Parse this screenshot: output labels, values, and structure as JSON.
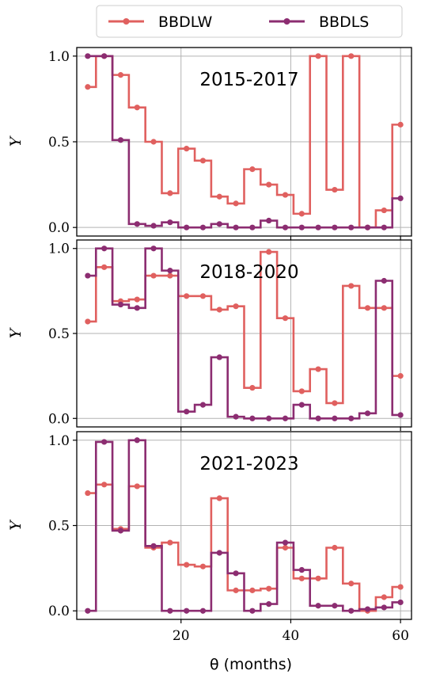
{
  "colors": {
    "BBDLW": "#e0605f",
    "BBDLS": "#8c2d71",
    "grid": "#b3b3b3",
    "axis": "#000000"
  },
  "chart_data": {
    "type": "line",
    "drawstyle": "steps-mid",
    "xlabel": "θ (months)",
    "ylabel": "Y",
    "xlim": [
      1,
      62
    ],
    "ylim": [
      -0.05,
      1.05
    ],
    "xticks": [
      20,
      40,
      60
    ],
    "yticks": [
      0.0,
      0.5,
      1.0
    ],
    "ytick_labels": [
      "0.0",
      "0.5",
      "1.0"
    ],
    "grid": true,
    "legend": {
      "placement": "top-center",
      "entries": [
        "BBDLW",
        "BBDLS"
      ]
    },
    "x": [
      3,
      6,
      9,
      12,
      15,
      18,
      21,
      24,
      27,
      30,
      33,
      36,
      39,
      42,
      45,
      48,
      51,
      54,
      57,
      60
    ],
    "panels": [
      {
        "title": "2015-2017",
        "series": [
          {
            "name": "BBDLW",
            "values": [
              0.82,
              1.0,
              0.89,
              0.7,
              0.5,
              0.2,
              0.46,
              0.39,
              0.18,
              0.14,
              0.34,
              0.25,
              0.19,
              0.08,
              1.0,
              0.22,
              1.0,
              0.0,
              0.1,
              0.6
            ]
          },
          {
            "name": "BBDLS",
            "values": [
              1.0,
              1.0,
              0.51,
              0.02,
              0.01,
              0.03,
              0.0,
              0.0,
              0.02,
              0.0,
              0.0,
              0.04,
              0.0,
              0.0,
              0.0,
              0.0,
              0.0,
              0.0,
              0.0,
              0.17
            ]
          }
        ]
      },
      {
        "title": "2018-2020",
        "series": [
          {
            "name": "BBDLW",
            "values": [
              0.57,
              0.89,
              0.69,
              0.7,
              0.84,
              0.84,
              0.72,
              0.72,
              0.64,
              0.66,
              0.18,
              0.98,
              0.59,
              0.16,
              0.29,
              0.09,
              0.78,
              0.65,
              0.65,
              0.25
            ]
          },
          {
            "name": "BBDLS",
            "values": [
              0.84,
              1.0,
              0.67,
              0.65,
              1.0,
              0.87,
              0.04,
              0.08,
              0.36,
              0.01,
              0.0,
              0.0,
              0.0,
              0.08,
              0.0,
              0.0,
              0.0,
              0.03,
              0.81,
              0.02
            ]
          }
        ]
      },
      {
        "title": "2021-2023",
        "series": [
          {
            "name": "BBDLW",
            "values": [
              0.69,
              0.74,
              0.48,
              0.73,
              0.37,
              0.4,
              0.27,
              0.26,
              0.66,
              0.12,
              0.12,
              0.13,
              0.37,
              0.19,
              0.19,
              0.37,
              0.16,
              0.0,
              0.08,
              0.14
            ]
          },
          {
            "name": "BBDLS",
            "values": [
              0.0,
              0.99,
              0.47,
              1.0,
              0.38,
              0.0,
              0.0,
              0.0,
              0.34,
              0.22,
              0.0,
              0.04,
              0.4,
              0.24,
              0.03,
              0.03,
              0.0,
              0.01,
              0.02,
              0.05
            ]
          }
        ]
      }
    ]
  }
}
